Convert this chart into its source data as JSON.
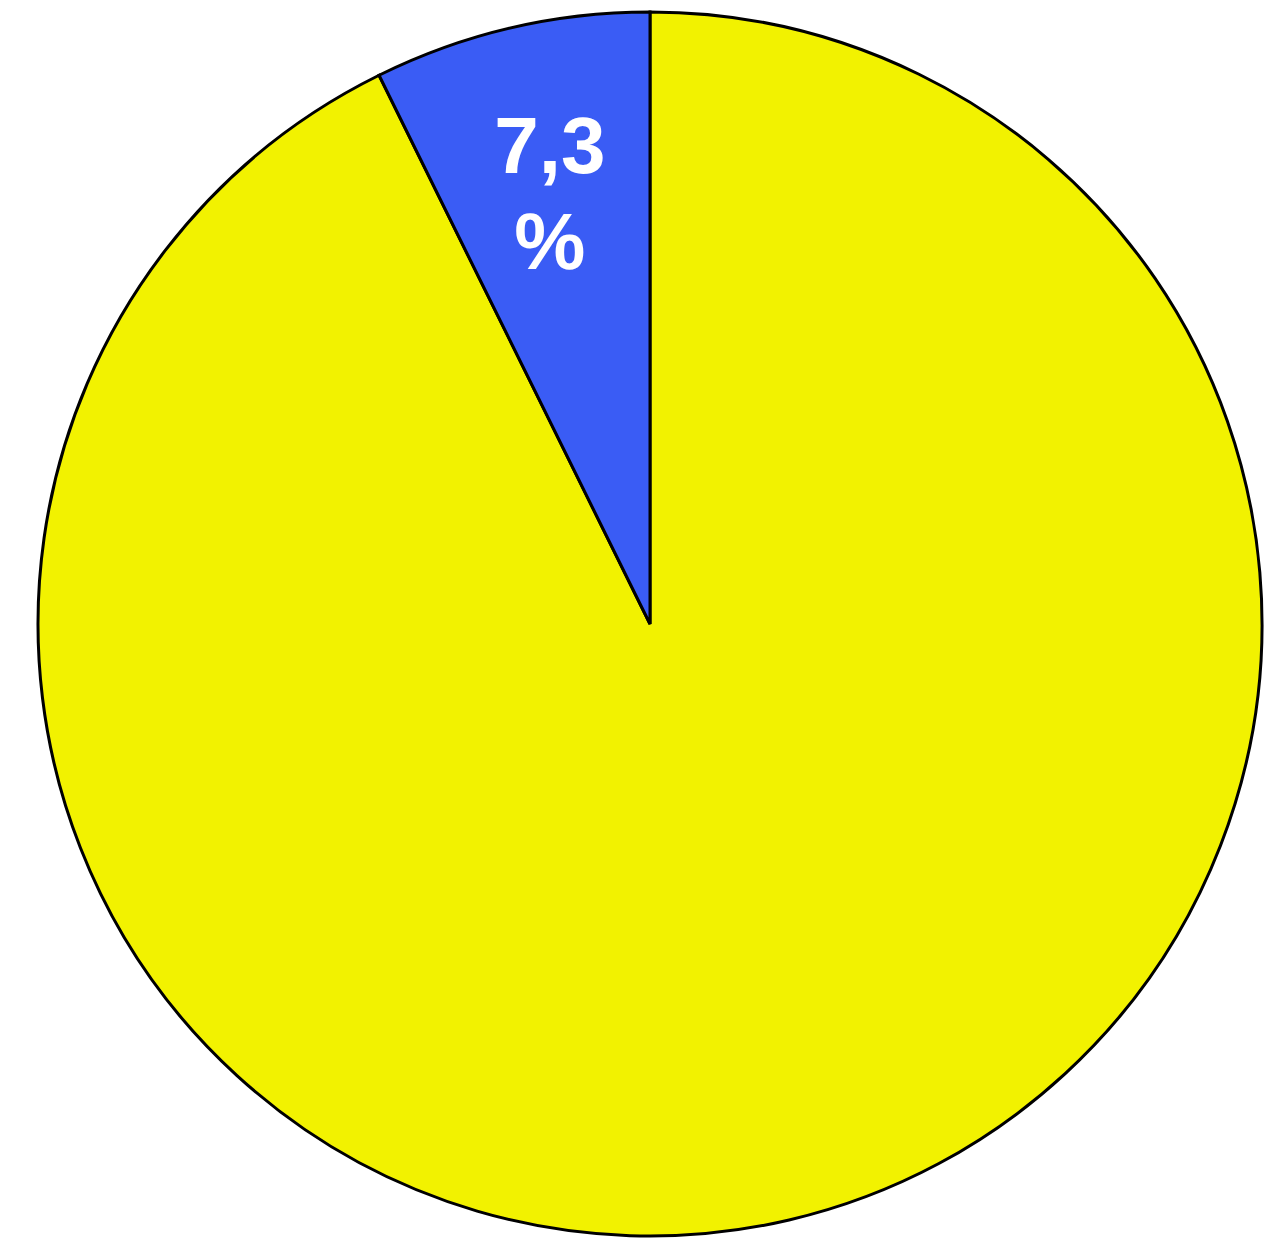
{
  "chart_data": {
    "type": "pie",
    "categories": [
      null,
      null
    ],
    "values": [
      92.7,
      7.3
    ],
    "colors": [
      "#f2f200",
      "#3a5cf5"
    ],
    "value_labels": [
      null,
      "7,3 %"
    ]
  }
}
